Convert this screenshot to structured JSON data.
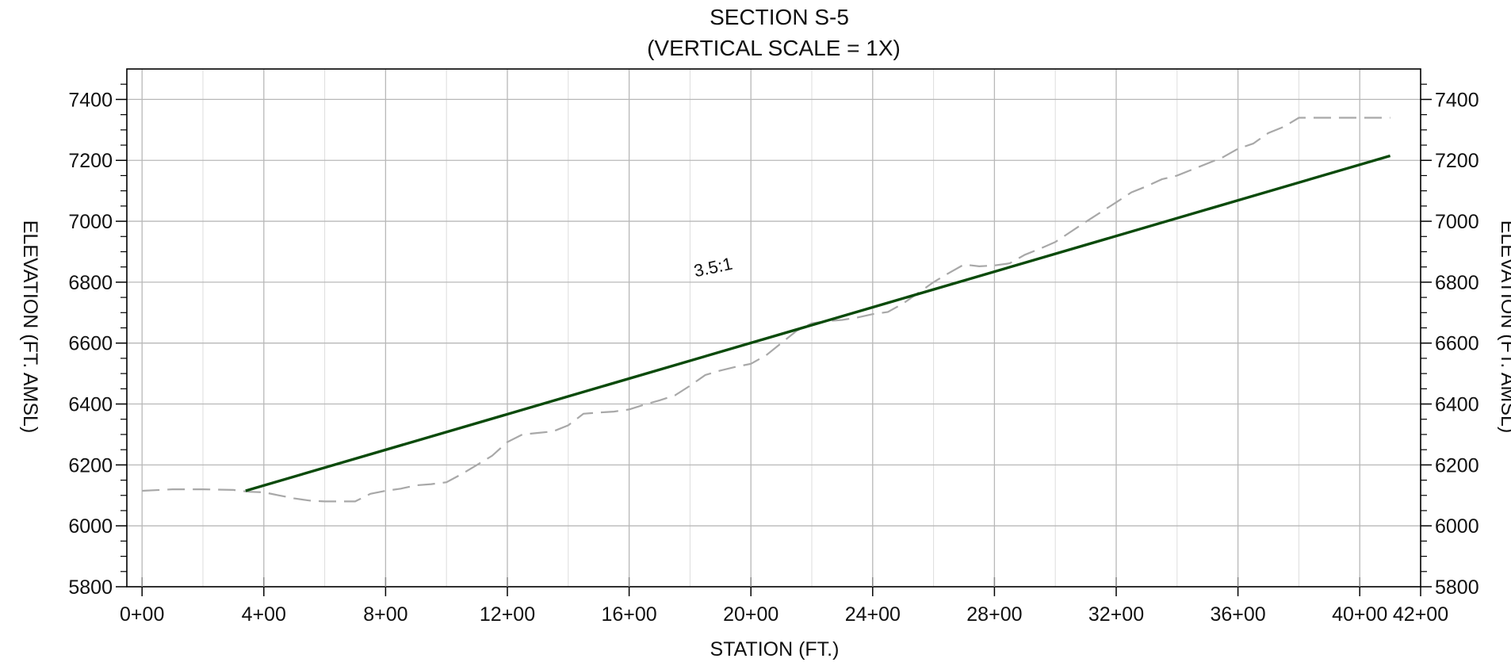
{
  "chart_data": {
    "type": "line",
    "title": "SECTION S-5",
    "subtitle": "(VERTICAL SCALE = 1X)",
    "xlabel": "STATION (FT.)",
    "ylabel": "ELEVATION (FT. AMSL)",
    "ylabel_right": "ELEVATION (FT. AMSL)",
    "xlim": [
      -50,
      4200
    ],
    "ylim": [
      5800,
      7500
    ],
    "x_ticks": [
      0,
      400,
      800,
      1200,
      1600,
      2000,
      2400,
      2800,
      3200,
      3600,
      4000,
      4200
    ],
    "x_tick_labels": [
      "0+00",
      "4+00",
      "8+00",
      "12+00",
      "16+00",
      "20+00",
      "24+00",
      "28+00",
      "32+00",
      "36+00",
      "40+00",
      "42+00"
    ],
    "y_ticks": [
      5800,
      6000,
      6200,
      6400,
      6600,
      6800,
      7000,
      7200,
      7400
    ],
    "y_tick_labels": [
      "5800",
      "6000",
      "6200",
      "6400",
      "6600",
      "6800",
      "7000",
      "7200",
      "7400"
    ],
    "grid": true,
    "annotations": [
      {
        "text": "3.5:1",
        "x": 1880,
        "y": 6830
      }
    ],
    "colors": {
      "design_line": "#0a4a0a",
      "ground": "#a8a8a8",
      "grid_major": "#b8b8b8",
      "grid_minor": "#dddddd"
    },
    "series": [
      {
        "style": "dashed",
        "x": [
          0,
          100,
          200,
          300,
          350,
          400,
          450,
          500,
          550,
          600,
          700,
          750,
          800,
          850,
          900,
          950,
          1000,
          1050,
          1100,
          1150,
          1200,
          1250,
          1300,
          1350,
          1400,
          1450,
          1500,
          1550,
          1600,
          1650,
          1700,
          1750,
          1800,
          1850,
          1900,
          1950,
          2000,
          2050,
          2100,
          2150,
          2200,
          2250,
          2300,
          2350,
          2400,
          2450,
          2500,
          2550,
          2600,
          2650,
          2700,
          2750,
          2800,
          2850,
          2900,
          2950,
          3000,
          3050,
          3100,
          3150,
          3200,
          3250,
          3300,
          3350,
          3400,
          3450,
          3500,
          3550,
          3600,
          3650,
          3700,
          3750,
          3800,
          3850,
          3900,
          3950,
          4000,
          4100
        ],
        "y": [
          6115,
          6120,
          6120,
          6118,
          6112,
          6110,
          6100,
          6090,
          6083,
          6080,
          6080,
          6105,
          6115,
          6122,
          6133,
          6137,
          6143,
          6170,
          6200,
          6230,
          6275,
          6300,
          6305,
          6310,
          6330,
          6368,
          6372,
          6375,
          6382,
          6398,
          6412,
          6428,
          6460,
          6495,
          6510,
          6522,
          6532,
          6560,
          6600,
          6640,
          6665,
          6672,
          6676,
          6684,
          6695,
          6702,
          6730,
          6765,
          6800,
          6830,
          6858,
          6852,
          6855,
          6862,
          6890,
          6910,
          6932,
          6965,
          6998,
          7030,
          7062,
          7095,
          7115,
          7138,
          7150,
          7170,
          7190,
          7210,
          7238,
          7255,
          7290,
          7310,
          7340,
          7340,
          7340,
          7340,
          7340,
          7340
        ]
      },
      {
        "style": "solid",
        "x": [
          340,
          4100
        ],
        "y": [
          6115,
          7215
        ]
      }
    ]
  }
}
